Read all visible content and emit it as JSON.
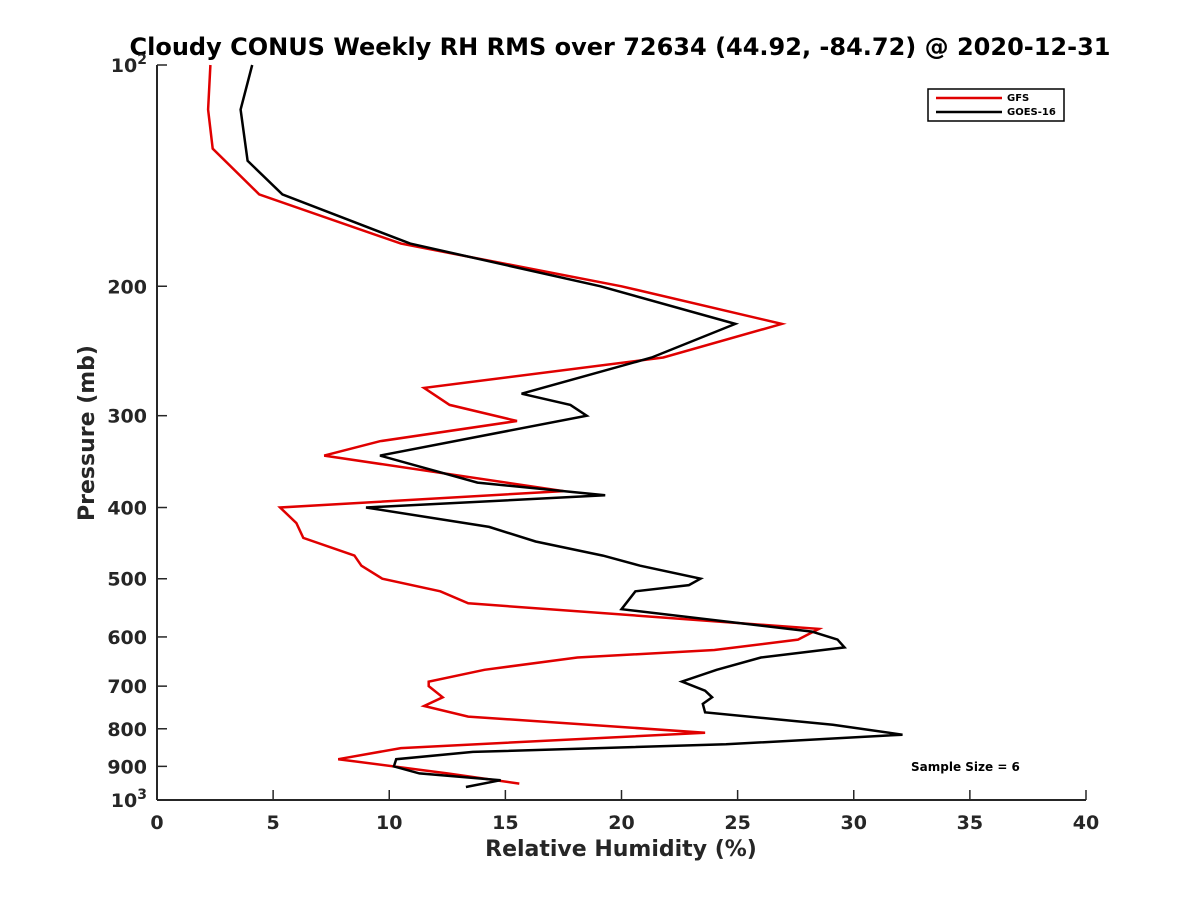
{
  "chart_data": {
    "type": "line",
    "title": "Cloudy CONUS Weekly RH RMS over 72634 (44.92, -84.72) @ 2020-12-31",
    "xlabel": "Relative Humidity (%)",
    "ylabel": "Pressure (mb)",
    "xlim": [
      0,
      40
    ],
    "ylim": [
      100,
      1000
    ],
    "y_scale": "log",
    "y_reversed": true,
    "grid": false,
    "legend_position": "top-right",
    "x_ticks": [
      0,
      5,
      10,
      15,
      20,
      25,
      30,
      35,
      40
    ],
    "x_tick_labels": [
      "0",
      "5",
      "10",
      "15",
      "20",
      "25",
      "30",
      "35",
      "40"
    ],
    "y_ticks": [
      100,
      200,
      300,
      400,
      500,
      600,
      700,
      800,
      900,
      1000
    ],
    "y_tick_labels": [
      {
        "base": "10",
        "exp": "2"
      },
      {
        "base": "200",
        "exp": ""
      },
      {
        "base": "300",
        "exp": ""
      },
      {
        "base": "400",
        "exp": ""
      },
      {
        "base": "500",
        "exp": ""
      },
      {
        "base": "600",
        "exp": ""
      },
      {
        "base": "700",
        "exp": ""
      },
      {
        "base": "800",
        "exp": ""
      },
      {
        "base": "900",
        "exp": ""
      },
      {
        "base": "10",
        "exp": "3"
      }
    ],
    "series": [
      {
        "name": "GFS",
        "color": "#e00000",
        "points": [
          [
            2.3,
            100
          ],
          [
            2.2,
            115
          ],
          [
            2.4,
            130
          ],
          [
            4.4,
            150
          ],
          [
            10.5,
            175
          ],
          [
            20,
            200
          ],
          [
            26.9,
            225
          ],
          [
            21.8,
            250
          ],
          [
            11.5,
            275
          ],
          [
            12.6,
            290
          ],
          [
            15.5,
            305
          ],
          [
            9.6,
            325
          ],
          [
            7.2,
            340
          ],
          [
            17.5,
            380
          ],
          [
            5.3,
            400
          ],
          [
            6.0,
            420
          ],
          [
            6.3,
            440
          ],
          [
            8.5,
            465
          ],
          [
            8.8,
            480
          ],
          [
            9.7,
            500
          ],
          [
            12.2,
            520
          ],
          [
            13.4,
            540
          ],
          [
            28.5,
            585
          ],
          [
            27.6,
            605
          ],
          [
            24.0,
            625
          ],
          [
            18.1,
            640
          ],
          [
            14.1,
            665
          ],
          [
            11.7,
            690
          ],
          [
            11.7,
            700
          ],
          [
            12.3,
            725
          ],
          [
            11.5,
            745
          ],
          [
            13.4,
            770
          ],
          [
            23.6,
            810
          ],
          [
            10.5,
            850
          ],
          [
            7.8,
            880
          ],
          [
            12.5,
            920
          ],
          [
            15.6,
            950
          ]
        ]
      },
      {
        "name": "GOES-16",
        "color": "#000000",
        "points": [
          [
            4.1,
            100
          ],
          [
            3.6,
            115
          ],
          [
            3.9,
            135
          ],
          [
            5.4,
            150
          ],
          [
            10.9,
            175
          ],
          [
            19.1,
            200
          ],
          [
            24.9,
            225
          ],
          [
            21.3,
            250
          ],
          [
            15.7,
            280
          ],
          [
            17.8,
            290
          ],
          [
            18.5,
            300
          ],
          [
            9.6,
            340
          ],
          [
            13.8,
            370
          ],
          [
            19.3,
            385
          ],
          [
            9.0,
            400
          ],
          [
            14.3,
            425
          ],
          [
            16.3,
            445
          ],
          [
            19.2,
            465
          ],
          [
            20.8,
            480
          ],
          [
            23.4,
            500
          ],
          [
            22.9,
            510
          ],
          [
            20.6,
            520
          ],
          [
            20.0,
            550
          ],
          [
            28.2,
            590
          ],
          [
            29.3,
            605
          ],
          [
            29.6,
            620
          ],
          [
            26.0,
            640
          ],
          [
            24.1,
            665
          ],
          [
            22.6,
            690
          ],
          [
            23.6,
            710
          ],
          [
            23.9,
            725
          ],
          [
            23.5,
            740
          ],
          [
            23.6,
            760
          ],
          [
            29.1,
            790
          ],
          [
            32.1,
            815
          ],
          [
            24.5,
            840
          ],
          [
            13.6,
            860
          ],
          [
            10.3,
            880
          ],
          [
            10.2,
            900
          ],
          [
            11.3,
            920
          ],
          [
            14.8,
            940
          ],
          [
            13.3,
            960
          ]
        ]
      }
    ],
    "annotations": [
      "Sample Size = 6"
    ]
  }
}
